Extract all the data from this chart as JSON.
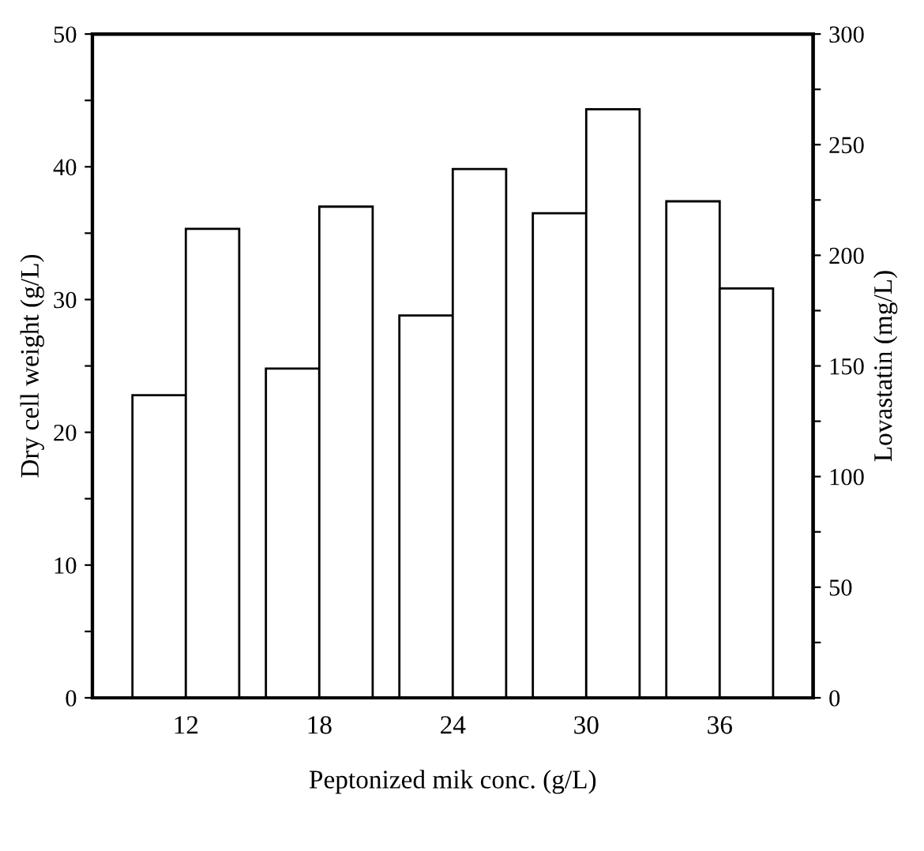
{
  "chart_data": {
    "type": "bar",
    "xlabel": "Peptonized mik conc. (g/L)",
    "ylabel": "Dry cell weight (g/L)",
    "y2label": "Lovastatin (mg/L)",
    "categories": [
      "12",
      "18",
      "24",
      "30",
      "36"
    ],
    "series": [
      {
        "color": "#ffffff",
        "values": [
          22.8,
          24.8,
          28.8,
          36.5,
          37.4
        ]
      },
      {
        "color": "#ffffff",
        "axis": "y2",
        "values": [
          212,
          222,
          239,
          266,
          185
        ]
      }
    ],
    "ylim": [
      0,
      50
    ],
    "yticks": [
      0,
      {
        "value": 5,
        "label": null
      },
      10,
      {
        "value": 15,
        "label": null
      },
      20,
      {
        "value": 25,
        "label": null
      },
      30,
      {
        "value": 35,
        "label": null
      },
      40,
      {
        "value": 45,
        "label": null
      },
      50
    ],
    "y2lim": [
      0,
      300
    ],
    "y2ticks": [
      0,
      {
        "value": 25,
        "label": null
      },
      50,
      {
        "value": 75,
        "label": null
      },
      100,
      {
        "value": 125,
        "label": null
      },
      150,
      {
        "value": 175,
        "label": null
      },
      200,
      {
        "value": 225,
        "label": null
      },
      250,
      {
        "value": 275,
        "label": null
      },
      300
    ],
    "grid": false,
    "legend": false
  }
}
